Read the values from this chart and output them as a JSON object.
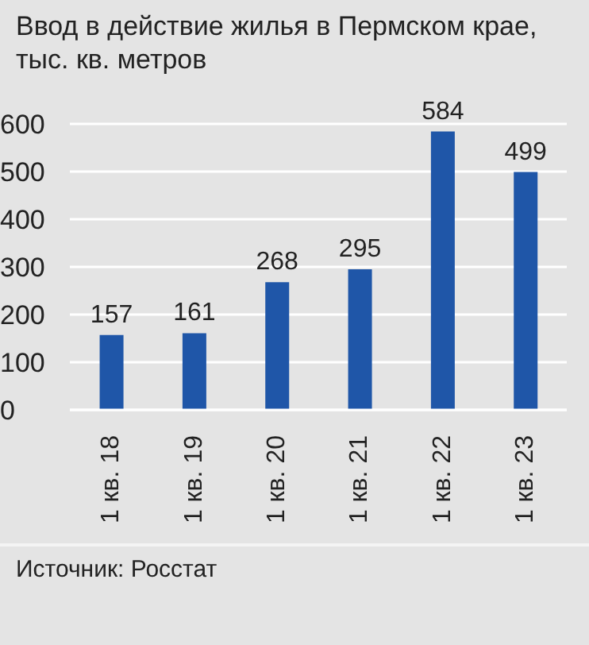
{
  "chart_data": {
    "type": "bar",
    "title": "Ввод в действие жилья в Пермском крае, тыс. кв. метров",
    "categories": [
      "1 кв. 18",
      "1 кв. 19",
      "1 кв. 20",
      "1 кв. 21",
      "1 кв. 22",
      "1 кв. 23"
    ],
    "values": [
      157,
      161,
      268,
      295,
      584,
      499
    ],
    "color": "#1f56a8",
    "ylim": [
      0,
      600
    ],
    "yticks": [
      0,
      100,
      200,
      300,
      400,
      500,
      600
    ],
    "grid": "y",
    "data_labels": true,
    "annotations": [
      "Источник: Росстат"
    ]
  }
}
